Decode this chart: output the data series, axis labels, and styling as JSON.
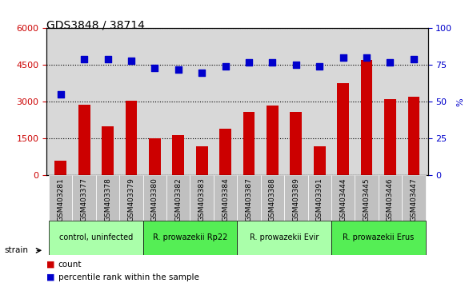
{
  "title": "GDS3848 / 38714",
  "samples": [
    "GSM403281",
    "GSM403377",
    "GSM403378",
    "GSM403379",
    "GSM403380",
    "GSM403382",
    "GSM403383",
    "GSM403384",
    "GSM403387",
    "GSM403388",
    "GSM403389",
    "GSM403391",
    "GSM403444",
    "GSM403445",
    "GSM403446",
    "GSM403447"
  ],
  "counts": [
    600,
    2900,
    2000,
    3050,
    1500,
    1650,
    1200,
    1900,
    2600,
    2850,
    2600,
    1200,
    3750,
    4700,
    3100,
    3200
  ],
  "percentiles": [
    55,
    79,
    79,
    78,
    73,
    72,
    70,
    74,
    77,
    77,
    75,
    74,
    80,
    80,
    77,
    79
  ],
  "bar_color": "#cc0000",
  "dot_color": "#0000cc",
  "ylim_left": [
    0,
    6000
  ],
  "ylim_right": [
    0,
    100
  ],
  "yticks_left": [
    0,
    1500,
    3000,
    4500,
    6000
  ],
  "yticks_right": [
    0,
    25,
    50,
    75,
    100
  ],
  "groups": [
    {
      "label": "control, uninfected",
      "start": 0,
      "end": 4,
      "color": "#aaffaa"
    },
    {
      "label": "R. prowazekii Rp22",
      "start": 4,
      "end": 8,
      "color": "#55ee55"
    },
    {
      "label": "R. prowazekii Evir",
      "start": 8,
      "end": 12,
      "color": "#aaffaa"
    },
    {
      "label": "R. prowazekii Erus",
      "start": 12,
      "end": 16,
      "color": "#55ee55"
    }
  ],
  "strain_label": "strain",
  "legend_count_label": "count",
  "legend_percentile_label": "percentile rank within the sample",
  "plot_bg_color": "#d8d8d8",
  "tick_label_color_left": "#cc0000",
  "tick_label_color_right": "#0000cc",
  "title_color": "#000000",
  "sample_label_bg": "#c0c0c0"
}
